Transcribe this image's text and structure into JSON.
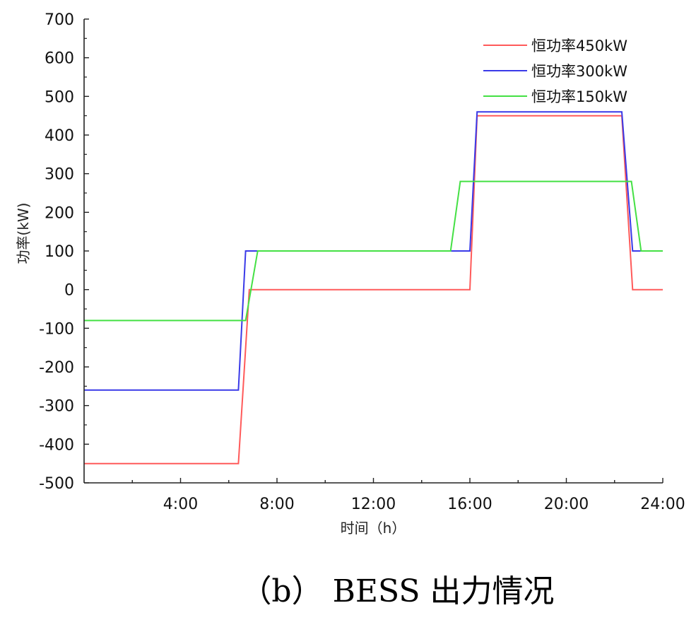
{
  "chart_data": {
    "type": "line",
    "xlabel": "时间（h）",
    "ylabel": "功率(kW)",
    "x_ticks": [
      "4:00",
      "8:00",
      "12:00",
      "16:00",
      "20:00",
      "24:00"
    ],
    "x_range_hours": [
      0,
      24
    ],
    "ylim": [
      -500,
      700
    ],
    "y_ticks": [
      700,
      600,
      500,
      400,
      300,
      200,
      100,
      0,
      -100,
      -200,
      -300,
      -400,
      -500
    ],
    "grid": false,
    "legend_position": "top-right",
    "series": [
      {
        "name": "恒功率450kW",
        "color": "#ff5a5a",
        "x_hours": [
          0,
          6.4,
          6.85,
          16.0,
          16.3,
          22.3,
          22.75,
          24
        ],
        "values": [
          -450,
          -450,
          0,
          0,
          450,
          450,
          0,
          0
        ]
      },
      {
        "name": "恒功率300kW",
        "color": "#3a3ae8",
        "x_hours": [
          0,
          6.4,
          6.7,
          16.0,
          16.3,
          22.3,
          22.75,
          24
        ],
        "values": [
          -260,
          -260,
          100,
          100,
          460,
          460,
          100,
          100
        ]
      },
      {
        "name": "恒功率150kW",
        "color": "#44e044",
        "x_hours": [
          0,
          6.7,
          7.2,
          15.2,
          15.6,
          22.7,
          23.1,
          24
        ],
        "values": [
          -80,
          -80,
          100,
          100,
          280,
          280,
          100,
          100
        ]
      }
    ]
  },
  "caption": "（b）  BESS 出力情况"
}
